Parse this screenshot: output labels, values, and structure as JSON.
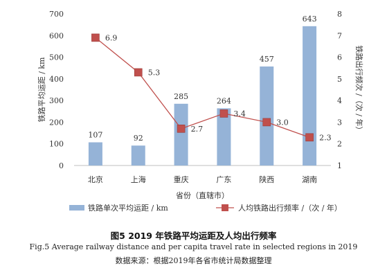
{
  "chart_data": {
    "type": "bar",
    "categories": [
      "北京",
      "上海",
      "重庆",
      "广东",
      "陕西",
      "湖南"
    ],
    "series": [
      {
        "name": "铁路单次平均运距 / km",
        "type": "bar",
        "axis": "left",
        "values": [
          107,
          92,
          285,
          264,
          457,
          643
        ]
      },
      {
        "name": "人均铁路出行频率 /（次 / 年）",
        "type": "line",
        "axis": "right",
        "values": [
          6.9,
          5.3,
          2.7,
          3.4,
          3.0,
          2.3
        ]
      }
    ],
    "xlabel": "省份（直辖市）",
    "ylabel_left": "铁路平均运距 / km",
    "ylabel_right": "铁路出行频次 /（次 / 年）",
    "ylim_left": [
      0,
      700
    ],
    "yticks_left": [
      0,
      100,
      200,
      300,
      400,
      500,
      600,
      700
    ],
    "ylim_right": [
      1,
      8
    ],
    "yticks_right": [
      1,
      2,
      3,
      4,
      5,
      6,
      7,
      8
    ],
    "grid": false,
    "legend_position": "bottom",
    "colors": {
      "bar": "#95b3d7",
      "line": "#c0504d",
      "marker": "#c0504d"
    }
  },
  "caption": {
    "title": "图5   2019 年铁路平均运距及人均出行频率",
    "english": "Fig.5    Average railway distance and per capita travel rate in selected regions in 2019",
    "source": "数据来源：根据2019年各省市统计局数据整理"
  }
}
